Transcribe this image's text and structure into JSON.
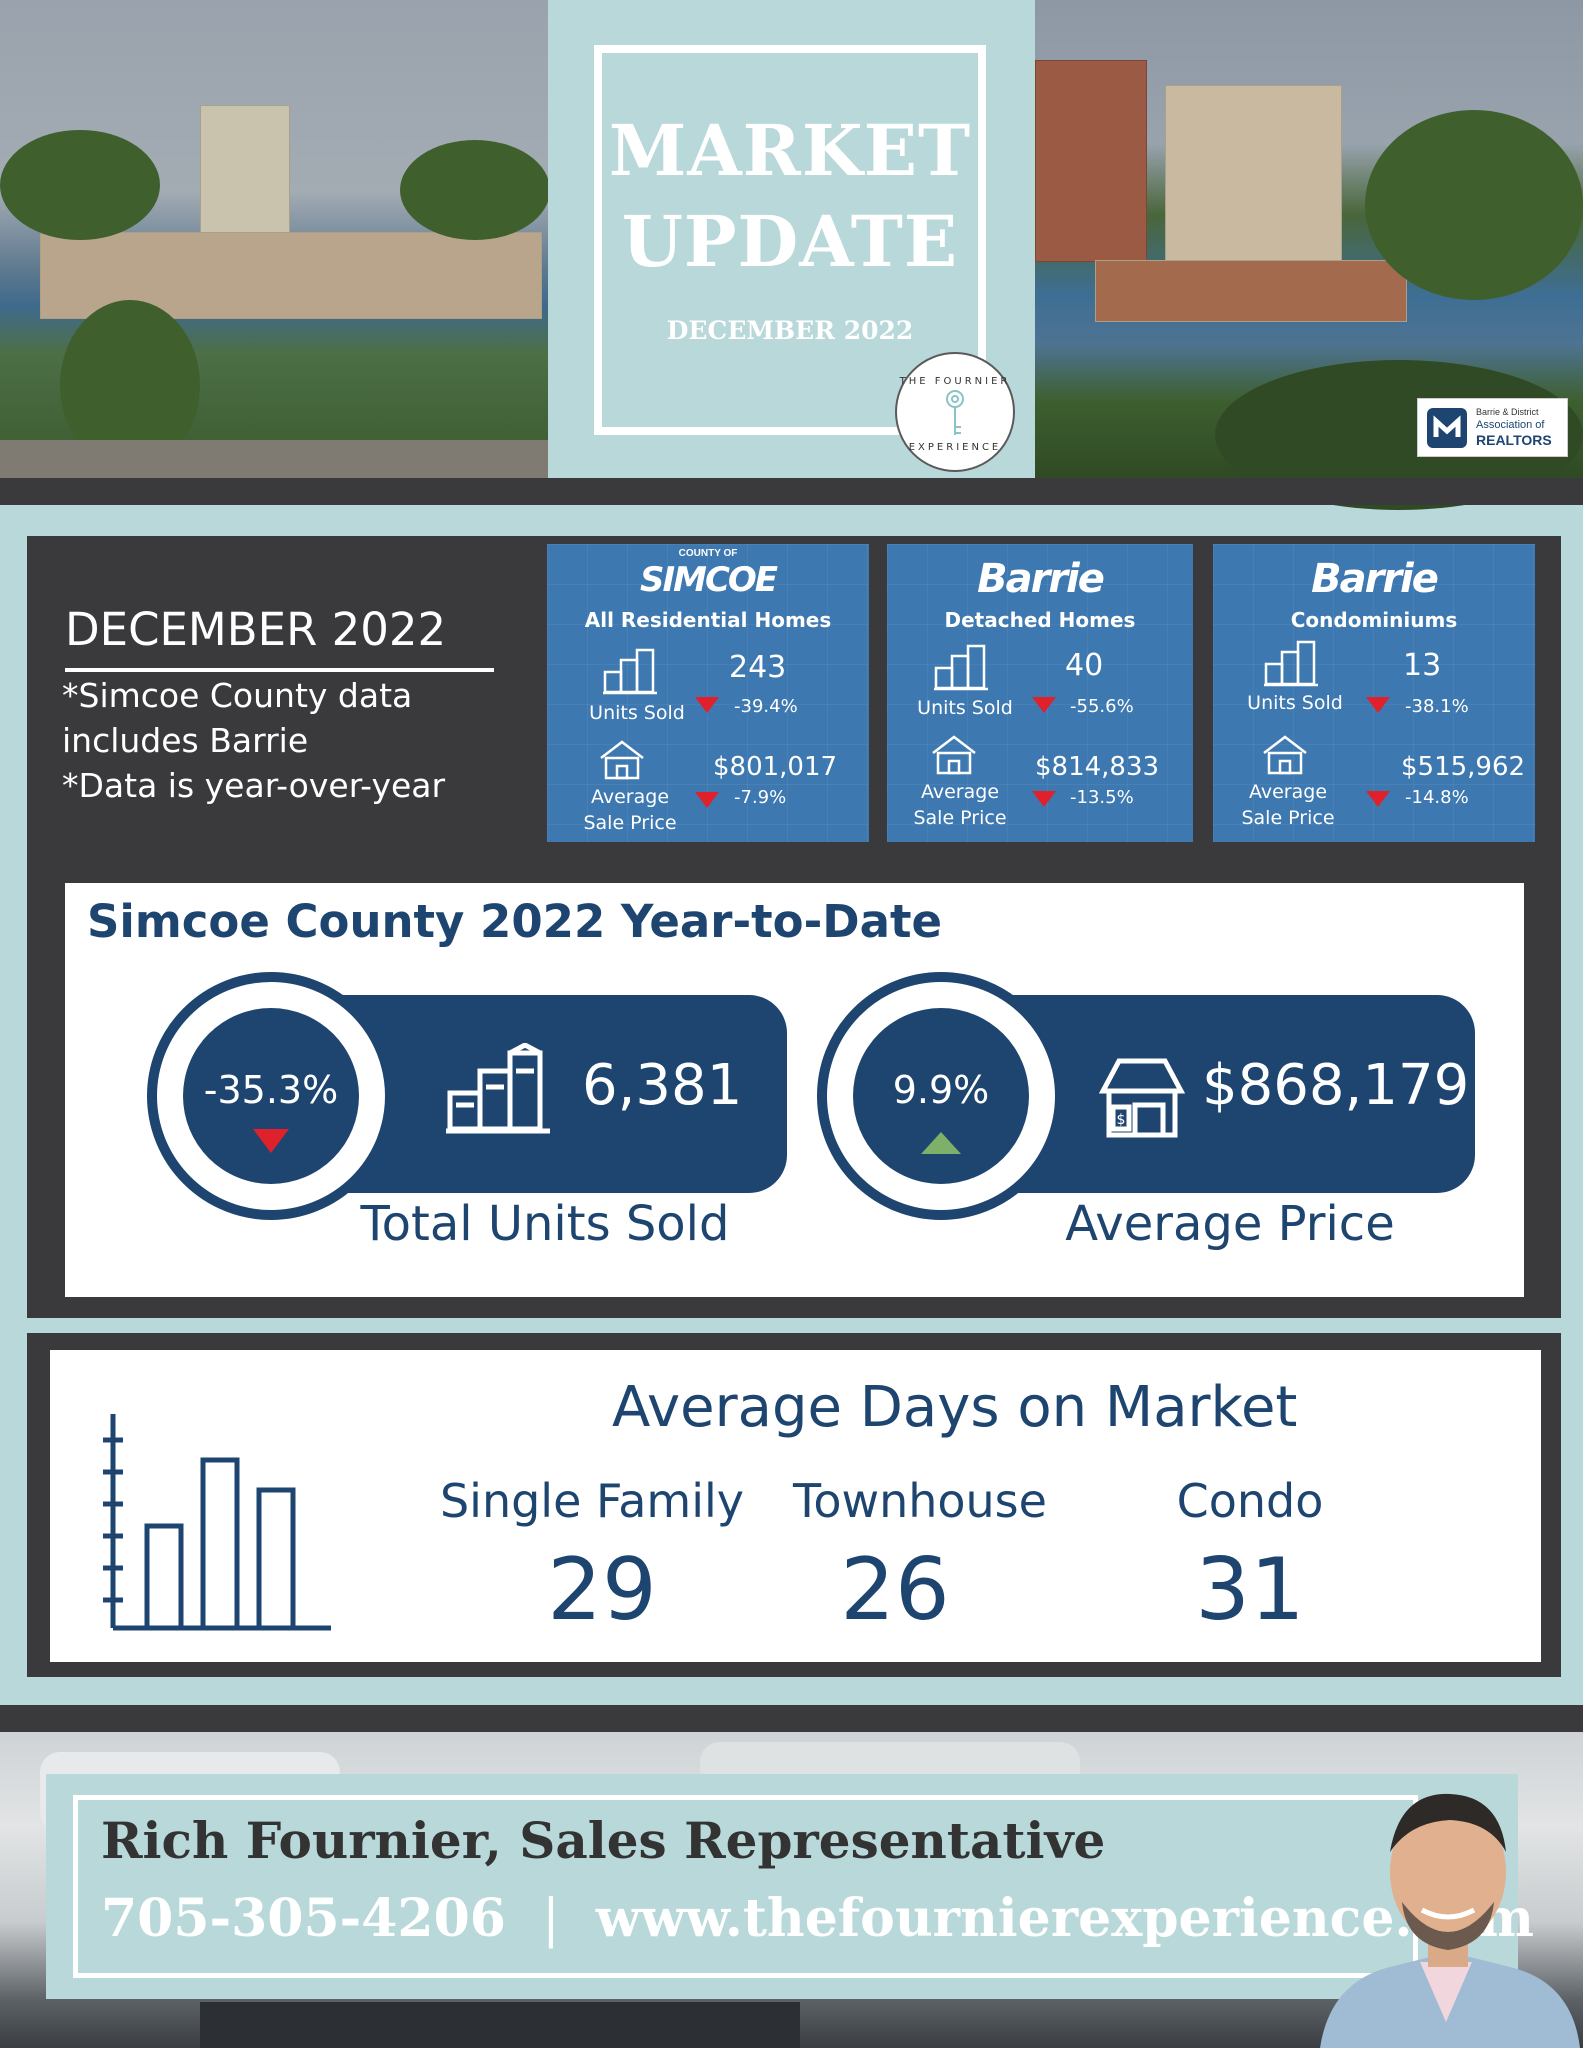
{
  "header": {
    "title_line1": "MARKET",
    "title_line2": "UPDATE",
    "date": "DECEMBER 2022",
    "badge_text_top": "THE FOURNIER",
    "badge_text_bottom": "EXPERIENCE",
    "board_logo": {
      "line1": "Barrie & District",
      "line2": "Association of",
      "line3": "REALTORS"
    }
  },
  "december": {
    "title": "DECEMBER 2022",
    "notes": [
      "*Simcoe County data",
      "includes Barrie",
      "*Data is year-over-year"
    ]
  },
  "cards": [
    {
      "brand_top": "COUNTY OF",
      "brand": "SIMCOE",
      "subtitle": "All Residential Homes",
      "units_label": "Units Sold",
      "units": "243",
      "units_change": "-39.4%",
      "price_label_1": "Average",
      "price_label_2": "Sale Price",
      "price": "$801,017",
      "price_change": "-7.9%"
    },
    {
      "brand_top": "",
      "brand": "Barrie",
      "subtitle": "Detached Homes",
      "units_label": "Units Sold",
      "units": "40",
      "units_change": "-55.6%",
      "price_label_1": "Average",
      "price_label_2": "Sale Price",
      "price": "$814,833",
      "price_change": "-13.5%"
    },
    {
      "brand_top": "",
      "brand": "Barrie",
      "subtitle": "Condominiums",
      "units_label": "Units Sold",
      "units": "13",
      "units_change": "-38.1%",
      "price_label_1": "Average",
      "price_label_2": "Sale Price",
      "price": "$515,962",
      "price_change": "-14.8%"
    }
  ],
  "ytd": {
    "title": "Simcoe County 2022 Year-to-Date",
    "units": {
      "change": "-35.3%",
      "value": "6,381",
      "label": "Total Units Sold",
      "direction": "down",
      "color": "#e0202a"
    },
    "price": {
      "change": "9.9%",
      "value": "$868,179",
      "label": "Average Price",
      "direction": "up",
      "color": "#7fb069"
    }
  },
  "days_on_market": {
    "title": "Average Days on Market",
    "categories": [
      {
        "name": "Single Family",
        "days": "29"
      },
      {
        "name": "Townhouse",
        "days": "26"
      },
      {
        "name": "Condo",
        "days": "31"
      }
    ]
  },
  "footer": {
    "name": "Rich Fournier, Sales Representative",
    "phone": "705-305-4206",
    "separator": "|",
    "website": "www.thefournierexperience.com"
  },
  "colors": {
    "navy": "#1d4570",
    "teal": "#b8d8da",
    "charcoal": "#3a3a3c",
    "card_blue": "#3d78b0",
    "down_red": "#e0202a",
    "up_green": "#7fb069"
  }
}
